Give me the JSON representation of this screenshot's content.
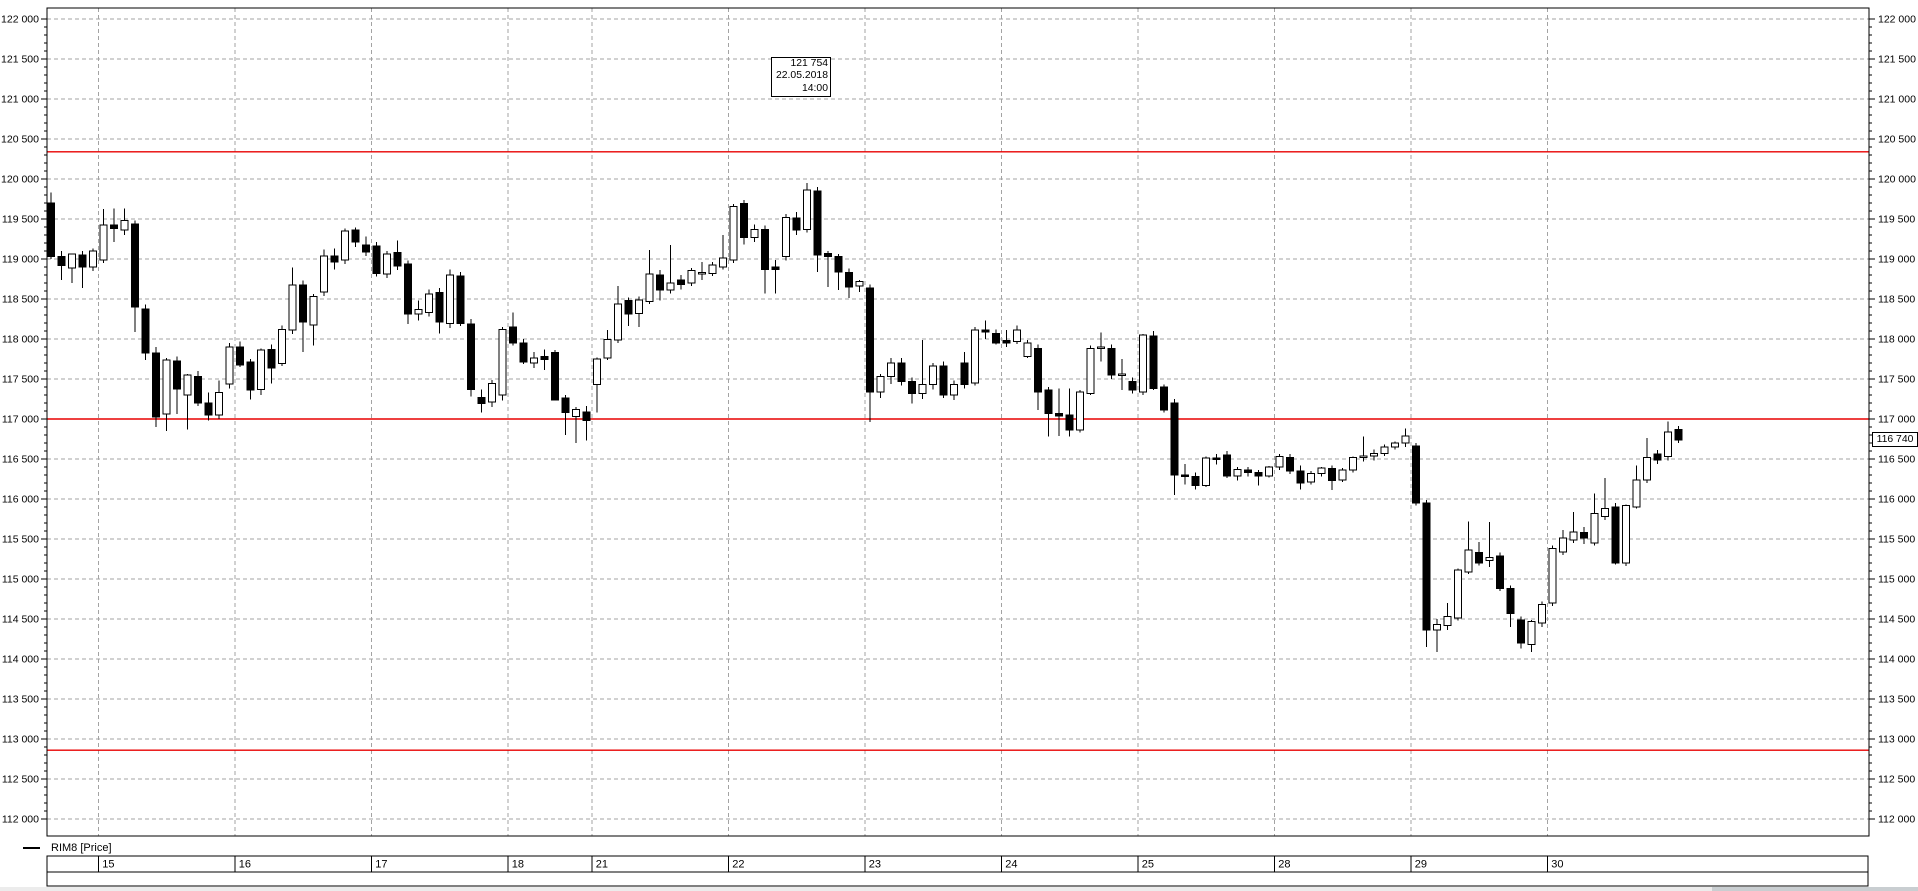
{
  "legend": {
    "series_label": "RIM8 [Price]"
  },
  "tooltip": {
    "price": "121 754",
    "date": "22.05.2018",
    "time": "14:00"
  },
  "price_marker": {
    "label": "116 740",
    "value": 116740
  },
  "colors": {
    "background": "#ffffff",
    "grid": "#a3a3a3",
    "axis": "#000000",
    "red_line": "#e80000",
    "candle_up_fill": "#ffffff",
    "candle_down_fill": "#000000",
    "candle_stroke": "#000000",
    "scrollbar_track": "#ececec",
    "scrollbar_thumb": "#c9ced1"
  },
  "chart_data": {
    "type": "candlestick",
    "title": "RIM8 [Price]",
    "ylabel": "Price",
    "y_axis": {
      "min": 112000,
      "max": 122000,
      "step": 500,
      "minor_step": 100,
      "tick_labels": [
        "122 000",
        "121 500",
        "121 000",
        "120 500",
        "120 000",
        "119 500",
        "119 000",
        "118 500",
        "118 000",
        "117 500",
        "117 000",
        "116 500",
        "116 000",
        "115 500",
        "115 000",
        "114 500",
        "114 000",
        "113 500",
        "113 000",
        "112 500",
        "112 000"
      ]
    },
    "x_axis": {
      "day_labels": [
        "15",
        "16",
        "17",
        "18",
        "21",
        "22",
        "23",
        "24",
        "25",
        "28",
        "29",
        "30"
      ]
    },
    "red_lines": [
      120340,
      117000,
      112860
    ],
    "grid": true,
    "days": [
      {
        "label": "",
        "candles": [
          [
            119700,
            119830,
            119000,
            119030
          ],
          [
            119030,
            119100,
            118740,
            118920
          ],
          [
            118890,
            119060,
            118700,
            119060
          ],
          [
            119050,
            119100,
            118640,
            118900
          ],
          [
            118900,
            119130,
            118850,
            119100
          ]
        ]
      },
      {
        "label": "15",
        "candles": [
          [
            118990,
            119625,
            118950,
            119425
          ],
          [
            119425,
            119630,
            119210,
            119380
          ],
          [
            119360,
            119630,
            119300,
            119480
          ],
          [
            119440,
            119480,
            118090,
            118400
          ],
          [
            118375,
            118430,
            117740,
            117825
          ],
          [
            117825,
            117900,
            116900,
            117025
          ],
          [
            117060,
            117760,
            116850,
            117740
          ],
          [
            117725,
            117780,
            117060,
            117375
          ],
          [
            117300,
            117560,
            116870,
            117550
          ],
          [
            117530,
            117600,
            117160,
            117200
          ],
          [
            117200,
            117330,
            116980,
            117050
          ],
          [
            117050,
            117480,
            117000,
            117330
          ],
          [
            117440,
            117950,
            117380,
            117900
          ]
        ]
      },
      {
        "label": "16",
        "candles": [
          [
            117900,
            117970,
            117650,
            117675
          ],
          [
            117715,
            117750,
            117245,
            117360
          ],
          [
            117370,
            117880,
            117300,
            117860
          ],
          [
            117870,
            117930,
            117445,
            117640
          ],
          [
            117695,
            118170,
            117660,
            118120
          ],
          [
            118110,
            118895,
            118060,
            118675
          ],
          [
            118675,
            118730,
            117840,
            118215
          ],
          [
            118175,
            118560,
            117920,
            118530
          ],
          [
            118590,
            119120,
            118540,
            119040
          ],
          [
            119040,
            119130,
            118870,
            118965
          ],
          [
            118990,
            119380,
            118940,
            119350
          ],
          [
            119360,
            119395,
            119150,
            119215
          ],
          [
            119175,
            119280,
            119040,
            119090
          ]
        ]
      },
      {
        "label": "17",
        "candles": [
          [
            119160,
            119210,
            118780,
            118820
          ],
          [
            118810,
            119100,
            118760,
            119060
          ],
          [
            119080,
            119230,
            118860,
            118910
          ],
          [
            118940,
            118980,
            118190,
            118310
          ],
          [
            118310,
            118480,
            118230,
            118370
          ],
          [
            118330,
            118620,
            118280,
            118560
          ],
          [
            118580,
            118640,
            118070,
            118215
          ],
          [
            118195,
            118870,
            118140,
            118800
          ],
          [
            118790,
            118840,
            118160,
            118195
          ],
          [
            118190,
            118250,
            117280,
            117370
          ],
          [
            117270,
            117370,
            117080,
            117195
          ],
          [
            117215,
            117490,
            117150,
            117445
          ],
          [
            117300,
            118150,
            117230,
            118120
          ]
        ]
      },
      {
        "label": "18",
        "candles": [
          [
            118150,
            118330,
            117920,
            117950
          ],
          [
            117950,
            118000,
            117690,
            117710
          ],
          [
            117700,
            117840,
            117640,
            117760
          ],
          [
            117780,
            117870,
            117610,
            117745
          ],
          [
            117830,
            117860,
            117230,
            117240
          ],
          [
            117260,
            117300,
            116800,
            117080
          ],
          [
            117030,
            117150,
            116700,
            117120
          ],
          [
            117090,
            117160,
            116730,
            116980
          ]
        ]
      },
      {
        "label": "21",
        "candles": [
          [
            117430,
            117770,
            117080,
            117750
          ],
          [
            117760,
            118110,
            117740,
            117995
          ],
          [
            117990,
            118660,
            117950,
            118435
          ],
          [
            118480,
            118520,
            118160,
            118310
          ],
          [
            118320,
            118530,
            118150,
            118490
          ],
          [
            118470,
            119110,
            118440,
            118810
          ],
          [
            118800,
            118860,
            118480,
            118610
          ],
          [
            118610,
            119175,
            118570,
            118700
          ],
          [
            118740,
            118800,
            118620,
            118680
          ],
          [
            118700,
            118890,
            118660,
            118855
          ],
          [
            118830,
            118960,
            118740,
            118830
          ],
          [
            118820,
            118960,
            118790,
            118925
          ],
          [
            118900,
            119300,
            118870,
            119010
          ]
        ]
      },
      {
        "label": "22",
        "candles": [
          [
            118990,
            119690,
            118950,
            119655
          ],
          [
            119695,
            119735,
            119180,
            119270
          ],
          [
            119270,
            119430,
            119210,
            119370
          ],
          [
            119370,
            119420,
            118570,
            118870
          ],
          [
            118900,
            118990,
            118570,
            118870
          ],
          [
            119030,
            119560,
            118980,
            119520
          ],
          [
            119510,
            119590,
            119300,
            119360
          ],
          [
            119370,
            119950,
            119330,
            119860
          ],
          [
            119850,
            119900,
            118840,
            119050
          ],
          [
            119070,
            119100,
            118650,
            119030
          ],
          [
            119030,
            119060,
            118610,
            118840
          ],
          [
            118830,
            118880,
            118510,
            118650
          ],
          [
            118660,
            118740,
            118590,
            118720
          ]
        ]
      },
      {
        "label": "23",
        "candles": [
          [
            118640,
            118680,
            116965,
            117340
          ],
          [
            117340,
            117560,
            117260,
            117530
          ],
          [
            117530,
            117760,
            117440,
            117700
          ],
          [
            117700,
            117760,
            117420,
            117470
          ],
          [
            117470,
            117520,
            117195,
            117320
          ],
          [
            117320,
            117990,
            117250,
            117430
          ],
          [
            117430,
            117700,
            117370,
            117660
          ],
          [
            117660,
            117720,
            117260,
            117300
          ],
          [
            117300,
            117480,
            117240,
            117430
          ],
          [
            117700,
            117840,
            117380,
            117430
          ],
          [
            117450,
            118150,
            117420,
            118110
          ],
          [
            118110,
            118230,
            118000,
            118090
          ],
          [
            118070,
            118120,
            117930,
            117950
          ]
        ]
      },
      {
        "label": "24",
        "candles": [
          [
            117980,
            118110,
            117900,
            117950
          ],
          [
            117970,
            118170,
            117940,
            118110
          ],
          [
            117780,
            117990,
            117760,
            117950
          ],
          [
            117880,
            117930,
            117110,
            117340
          ],
          [
            117360,
            117400,
            116780,
            117070
          ],
          [
            117070,
            117380,
            116790,
            117040
          ],
          [
            117050,
            117380,
            116780,
            116860
          ],
          [
            116860,
            117360,
            116830,
            117340
          ],
          [
            117320,
            117920,
            117300,
            117880
          ],
          [
            117900,
            118080,
            117720,
            117900
          ],
          [
            117880,
            117930,
            117500,
            117550
          ],
          [
            117560,
            117750,
            117360,
            117560
          ],
          [
            117470,
            117520,
            117320,
            117360
          ]
        ]
      },
      {
        "label": "25",
        "candles": [
          [
            117340,
            118060,
            117300,
            118050
          ],
          [
            118040,
            118100,
            117360,
            117380
          ],
          [
            117400,
            117430,
            117080,
            117110
          ],
          [
            117200,
            117250,
            116050,
            116300
          ],
          [
            116300,
            116440,
            116180,
            116290
          ],
          [
            116280,
            116330,
            116120,
            116170
          ],
          [
            116170,
            116530,
            116150,
            116510
          ],
          [
            116510,
            116560,
            116430,
            116500
          ],
          [
            116550,
            116600,
            116260,
            116290
          ],
          [
            116290,
            116400,
            116230,
            116370
          ],
          [
            116360,
            116400,
            116280,
            116330
          ],
          [
            116330,
            116360,
            116170,
            116290
          ],
          [
            116290,
            116410,
            116270,
            116400
          ]
        ]
      },
      {
        "label": "28",
        "candles": [
          [
            116400,
            116560,
            116360,
            116530
          ],
          [
            116520,
            116560,
            116310,
            116350
          ],
          [
            116350,
            116420,
            116120,
            116200
          ],
          [
            116210,
            116350,
            116180,
            116320
          ],
          [
            116320,
            116400,
            116280,
            116390
          ],
          [
            116380,
            116420,
            116110,
            116230
          ],
          [
            116240,
            116390,
            116210,
            116360
          ],
          [
            116360,
            116530,
            116330,
            116520
          ],
          [
            116520,
            116780,
            116470,
            116540
          ],
          [
            116540,
            116620,
            116480,
            116570
          ],
          [
            116570,
            116680,
            116540,
            116650
          ],
          [
            116650,
            116720,
            116620,
            116700
          ],
          [
            116700,
            116880,
            116650,
            116790
          ]
        ]
      },
      {
        "label": "29",
        "candles": [
          [
            116660,
            116700,
            115920,
            115950
          ],
          [
            115950,
            115990,
            114150,
            114360
          ],
          [
            114360,
            114500,
            114090,
            114430
          ],
          [
            114420,
            114700,
            114360,
            114530
          ],
          [
            114510,
            115130,
            114480,
            115110
          ],
          [
            115090,
            115720,
            115060,
            115360
          ],
          [
            115330,
            115460,
            115170,
            115200
          ],
          [
            115230,
            115710,
            115150,
            115270
          ],
          [
            115290,
            115330,
            114850,
            114880
          ],
          [
            114880,
            114920,
            114400,
            114570
          ],
          [
            114490,
            114530,
            114130,
            114200
          ],
          [
            114180,
            114490,
            114090,
            114470
          ],
          [
            114450,
            114720,
            114400,
            114680
          ]
        ]
      },
      {
        "label": "30",
        "candles": [
          [
            114700,
            115420,
            114660,
            115380
          ],
          [
            115340,
            115610,
            115300,
            115510
          ],
          [
            115490,
            115840,
            115450,
            115590
          ],
          [
            115580,
            115650,
            115440,
            115510
          ],
          [
            115450,
            116070,
            115420,
            115820
          ],
          [
            115780,
            116260,
            115740,
            115880
          ],
          [
            115900,
            115950,
            115180,
            115200
          ],
          [
            115200,
            115930,
            115160,
            115920
          ],
          [
            115900,
            116420,
            115880,
            116240
          ],
          [
            116240,
            116760,
            116200,
            116520
          ],
          [
            116560,
            116610,
            116440,
            116490
          ],
          [
            116530,
            116970,
            116480,
            116840
          ],
          [
            116870,
            116910,
            116700,
            116740
          ]
        ]
      }
    ]
  }
}
